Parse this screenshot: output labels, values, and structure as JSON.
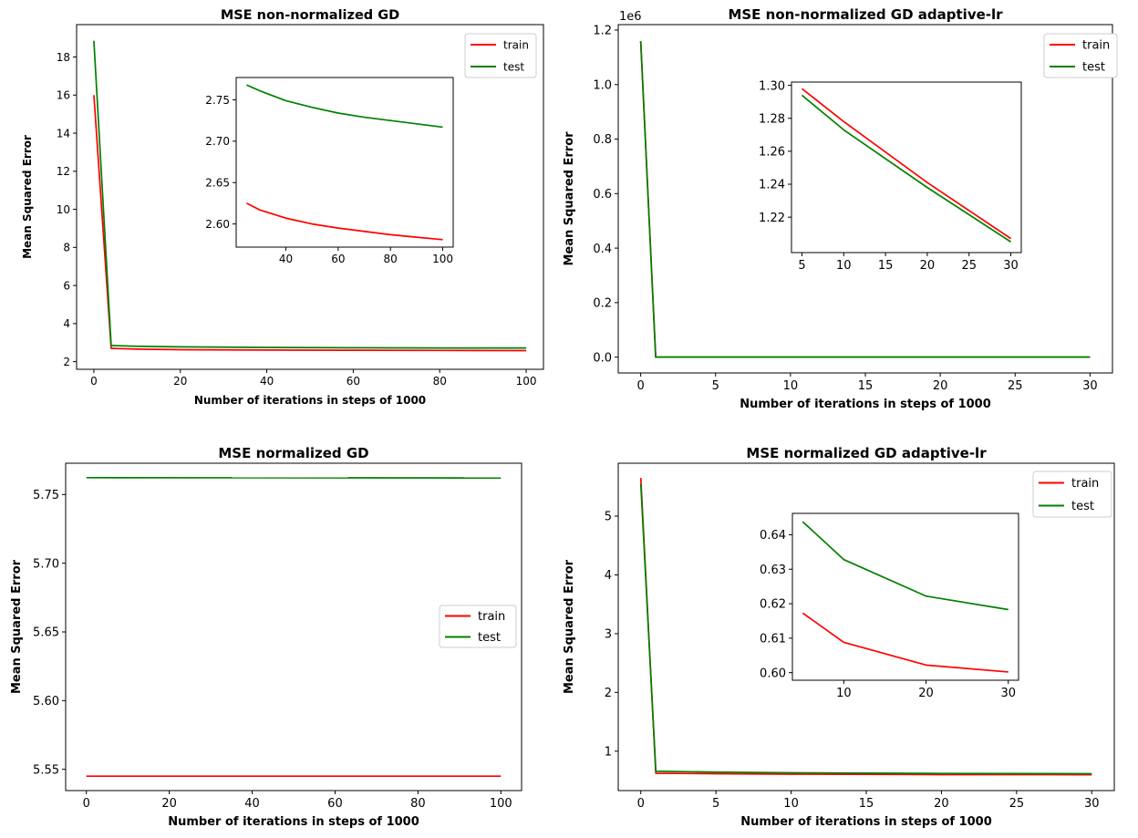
{
  "chart_data": [
    {
      "type": "line",
      "title": "MSE non-normalized GD",
      "xlabel": "Number of iterations in steps of 1000",
      "ylabel": "Mean Squared Error",
      "xlim": [
        -4,
        104
      ],
      "ylim": [
        1.6,
        19.7
      ],
      "xticks": [
        0,
        20,
        40,
        60,
        80,
        100
      ],
      "yticks": [
        2,
        4,
        6,
        8,
        10,
        12,
        14,
        16,
        18
      ],
      "legend": "upper right",
      "series": [
        {
          "name": "train",
          "color": "#ff0000",
          "x": [
            0,
            4,
            10,
            20,
            40,
            60,
            80,
            100
          ],
          "y": [
            16.0,
            2.7,
            2.66,
            2.63,
            2.61,
            2.6,
            2.59,
            2.58
          ]
        },
        {
          "name": "test",
          "color": "#008000",
          "x": [
            0,
            4,
            10,
            20,
            40,
            60,
            80,
            100
          ],
          "y": [
            18.85,
            2.85,
            2.81,
            2.78,
            2.75,
            2.73,
            2.72,
            2.72
          ]
        }
      ],
      "inset": {
        "xlim": [
          21,
          104
        ],
        "ylim": [
          2.572,
          2.777
        ],
        "xticks": [
          40,
          60,
          80,
          100
        ],
        "yticks": [
          2.6,
          2.65,
          2.7,
          2.75
        ],
        "yfmt": 2,
        "series": [
          {
            "color": "#ff0000",
            "x": [
              25,
              30,
              40,
              50,
              60,
              70,
              80,
              90,
              100
            ],
            "y": [
              2.625,
              2.617,
              2.607,
              2.6,
              2.595,
              2.591,
              2.587,
              2.584,
              2.581
            ]
          },
          {
            "color": "#008000",
            "x": [
              25,
              30,
              40,
              50,
              60,
              70,
              80,
              90,
              100
            ],
            "y": [
              2.768,
              2.761,
              2.749,
              2.741,
              2.734,
              2.729,
              2.725,
              2.721,
              2.717
            ]
          }
        ]
      }
    },
    {
      "type": "line",
      "title": "MSE non-normalized GD adaptive-lr",
      "xlabel": "Number of iterations in steps of 1000",
      "ylabel": "Mean Squared Error",
      "offset_label": "1e6",
      "xlim": [
        -1.5,
        31.5
      ],
      "ylim": [
        -0.058,
        1.22
      ],
      "xticks": [
        0,
        5,
        10,
        15,
        20,
        25,
        30
      ],
      "yticks": [
        0.0,
        0.2,
        0.4,
        0.6,
        0.8,
        1.0,
        1.2
      ],
      "yfmt": 1,
      "legend": "upper right",
      "series": [
        {
          "name": "train",
          "color": "#ff0000",
          "x": [
            0,
            1,
            5,
            10,
            20,
            30
          ],
          "y": [
            1.16,
            1.3e-06,
            1.3e-06,
            1.3e-06,
            1.2e-06,
            1.2e-06
          ]
        },
        {
          "name": "test",
          "color": "#008000",
          "x": [
            0,
            1,
            5,
            10,
            20,
            30
          ],
          "y": [
            1.16,
            1.3e-06,
            1.3e-06,
            1.3e-06,
            1.2e-06,
            1.2e-06
          ]
        }
      ],
      "inset": {
        "xlim": [
          3.75,
          31.25
        ],
        "ylim": [
          1.1985,
          1.302
        ],
        "xticks": [
          5,
          10,
          15,
          20,
          25,
          30
        ],
        "yticks": [
          1.22,
          1.24,
          1.26,
          1.28,
          1.3
        ],
        "yfmt": 2,
        "series": [
          {
            "color": "#ff0000",
            "x": [
              5,
              10,
              20,
              30
            ],
            "y": [
              1.298,
              1.278,
              1.241,
              1.207
            ]
          },
          {
            "color": "#008000",
            "x": [
              5,
              10,
              20,
              30
            ],
            "y": [
              1.294,
              1.273,
              1.238,
              1.205
            ]
          }
        ]
      }
    },
    {
      "type": "line",
      "title": "MSE normalized GD",
      "xlabel": "Number of iterations in steps of 1000",
      "ylabel": "Mean Squared Error",
      "xlim": [
        -5,
        105
      ],
      "ylim": [
        5.5345,
        5.7728
      ],
      "xticks": [
        0,
        20,
        40,
        60,
        80,
        100
      ],
      "yticks": [
        5.55,
        5.6,
        5.65,
        5.7,
        5.75
      ],
      "yfmt": 2,
      "legend": "center right",
      "series": [
        {
          "name": "train",
          "color": "#ff0000",
          "x": [
            0,
            100
          ],
          "y": [
            5.545,
            5.545
          ]
        },
        {
          "name": "test",
          "color": "#008000",
          "x": [
            0,
            100
          ],
          "y": [
            5.7623,
            5.7621
          ]
        }
      ]
    },
    {
      "type": "line",
      "title": "MSE normalized GD adaptive-lr",
      "xlabel": "Number of iterations in steps of 1000",
      "ylabel": "Mean Squared Error",
      "xlim": [
        -1.5,
        31.5
      ],
      "ylim": [
        0.33,
        5.9
      ],
      "xticks": [
        0,
        5,
        10,
        15,
        20,
        25,
        30
      ],
      "yticks": [
        1,
        2,
        3,
        4,
        5
      ],
      "legend": "upper right",
      "series": [
        {
          "name": "train",
          "color": "#ff0000",
          "x": [
            0,
            1,
            5,
            10,
            20,
            30
          ],
          "y": [
            5.65,
            0.625,
            0.617,
            0.609,
            0.602,
            0.6
          ]
        },
        {
          "name": "test",
          "color": "#008000",
          "x": [
            0,
            1,
            5,
            10,
            20,
            30
          ],
          "y": [
            5.55,
            0.66,
            0.644,
            0.633,
            0.622,
            0.618
          ]
        }
      ],
      "inset": {
        "xlim": [
          3.75,
          31.25
        ],
        "ylim": [
          0.5978,
          0.6462
        ],
        "xticks": [
          10,
          20,
          30
        ],
        "yticks": [
          0.6,
          0.61,
          0.62,
          0.63,
          0.64
        ],
        "yfmt": 2,
        "series": [
          {
            "color": "#ff0000",
            "x": [
              5,
              10,
              20,
              30
            ],
            "y": [
              0.6173,
              0.6088,
              0.6022,
              0.6002
            ]
          },
          {
            "color": "#008000",
            "x": [
              5,
              10,
              20,
              30
            ],
            "y": [
              0.6438,
              0.6328,
              0.6222,
              0.6183
            ]
          }
        ]
      }
    }
  ]
}
